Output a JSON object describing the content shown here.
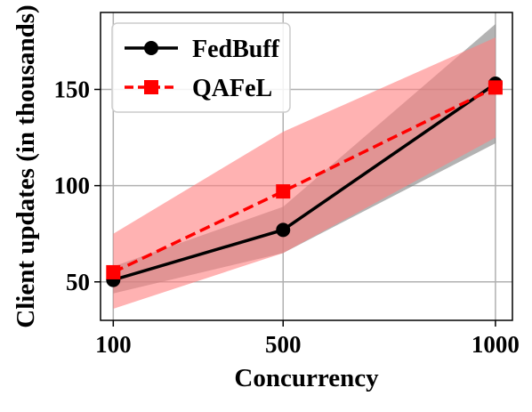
{
  "chart_data": {
    "type": "line",
    "title": "",
    "xlabel": "Concurrency",
    "ylabel": "Client updates (in thousands)",
    "categories": [
      "100",
      "500",
      "1000"
    ],
    "x": [
      100,
      500,
      1000
    ],
    "xlim": [
      70,
      1040
    ],
    "ylim": [
      30,
      190
    ],
    "yticks": [
      50,
      100,
      150
    ],
    "grid": true,
    "legend_position": "top-left",
    "series": [
      {
        "name": "FedBuff",
        "values": [
          51,
          77,
          153
        ],
        "lower": [
          44,
          65,
          122
        ],
        "upper": [
          58,
          89,
          184
        ],
        "color": "#000000",
        "band_color": "#808080",
        "marker": "circle",
        "linestyle": "solid"
      },
      {
        "name": "QAFeL",
        "values": [
          55,
          97,
          151
        ],
        "lower": [
          36,
          65,
          125
        ],
        "upper": [
          75,
          128,
          177
        ],
        "color": "#ff0000",
        "band_color": "#ff7f7f",
        "marker": "square",
        "linestyle": "dashed"
      }
    ]
  }
}
